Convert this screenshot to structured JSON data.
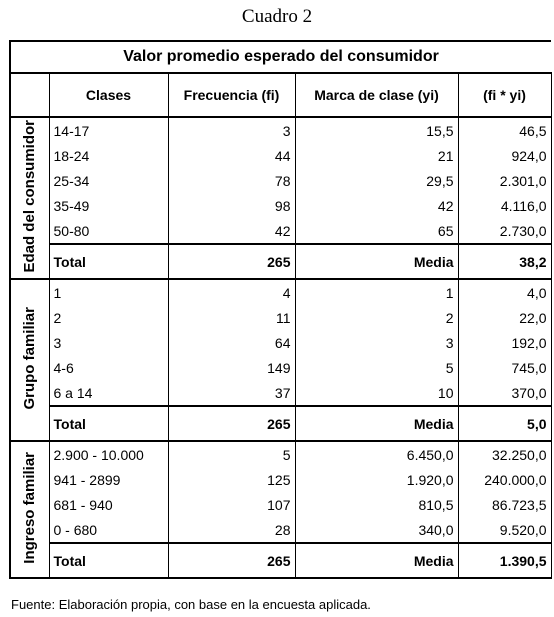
{
  "caption": "Cuadro 2",
  "table_title": "Valor promedio esperado del consumidor",
  "headers": [
    "Clases",
    "Frecuencia (fi)",
    "Marca de clase (yi)",
    "(fi * yi)"
  ],
  "groups": [
    {
      "label": "Edad del consumidor",
      "rows": [
        [
          "14-17",
          "3",
          "15,5",
          "46,5"
        ],
        [
          "18-24",
          "44",
          "21",
          "924,0"
        ],
        [
          "25-34",
          "78",
          "29,5",
          "2.301,0"
        ],
        [
          "35-49",
          "98",
          "42",
          "4.116,0"
        ],
        [
          "50-80",
          "42",
          "65",
          "2.730,0"
        ]
      ],
      "total": [
        "Total",
        "265",
        "Media",
        "38,2"
      ]
    },
    {
      "label": "Grupo familiar",
      "rows": [
        [
          "1",
          "4",
          "1",
          "4,0"
        ],
        [
          "2",
          "11",
          "2",
          "22,0"
        ],
        [
          "3",
          "64",
          "3",
          "192,0"
        ],
        [
          "4-6",
          "149",
          "5",
          "745,0"
        ],
        [
          "6 a 14",
          "37",
          "10",
          "370,0"
        ]
      ],
      "total": [
        "Total",
        "265",
        "Media",
        "5,0"
      ]
    },
    {
      "label": "Ingreso familiar",
      "rows": [
        [
          "2.900 - 10.000",
          "5",
          "6.450,0",
          "32.250,0"
        ],
        [
          "941 - 2899",
          "125",
          "1.920,0",
          "240.000,0"
        ],
        [
          "681 - 940",
          "107",
          "810,5",
          "86.723,5"
        ],
        [
          "0 - 680",
          "28",
          "340,0",
          "9.520,0"
        ]
      ],
      "total": [
        "Total",
        "265",
        "Media",
        "1.390,5"
      ]
    }
  ],
  "source": "Fuente: Elaboración propia, con base en la encuesta aplicada."
}
